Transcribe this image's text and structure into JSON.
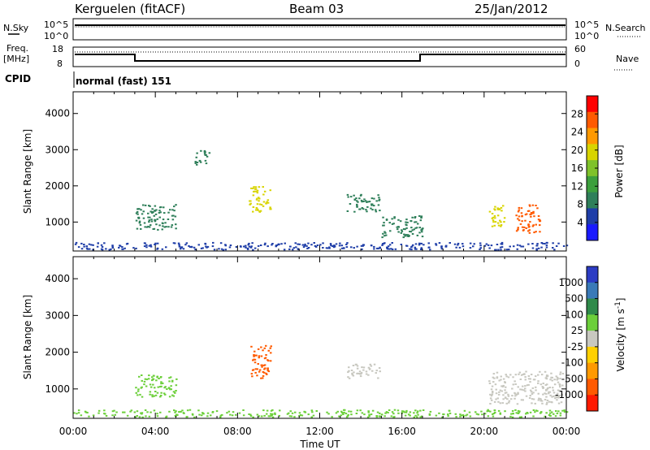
{
  "header": {
    "title": "Kerguelen (fitACF)",
    "beam": "Beam 03",
    "date": "25/Jan/2012"
  },
  "status_panels": {
    "nsky_label": "N.Sky",
    "nsearch_label": "N.Search",
    "freq_label_1": "Freq.",
    "freq_label_2": "[MHz]",
    "nave_label": "Nave",
    "cpid_label": "CPID",
    "cpid_value": "normal (fast) 151",
    "noise_ticks": [
      "10^5",
      "10^0"
    ],
    "freq_ticks_left": [
      "18",
      "8"
    ],
    "freq_ticks_right": [
      "60",
      "0"
    ]
  },
  "colors": {
    "power_scale": [
      "#1a1aff",
      "#1f3ea8",
      "#2f7f5a",
      "#3c9f3c",
      "#7fc22a",
      "#d8d400",
      "#ff9900",
      "#ff5a00",
      "#ff0000"
    ],
    "velocity_scale": [
      "#2c3cc4",
      "#3a7ab8",
      "#2f8a4a",
      "#6ccf3a",
      "#c8c8c0",
      "#ffd000",
      "#ff9a00",
      "#ff5a00",
      "#ff1a00"
    ]
  },
  "chart_data": [
    {
      "type": "heatmap",
      "panel": "power",
      "ylabel": "Slant Range [km]",
      "yticks": [
        "1000",
        "2000",
        "3000",
        "4000"
      ],
      "ylim": [
        200,
        4600
      ],
      "xticks": [
        "00:00",
        "04:00",
        "08:00",
        "12:00",
        "16:00",
        "20:00",
        "00:00"
      ],
      "colorbar_label": "Power [dB]",
      "colorbar_ticks": [
        "4",
        "8",
        "12",
        "16",
        "20",
        "24",
        "28"
      ],
      "regions": [
        {
          "t0": 0.0,
          "t1": 24.0,
          "r0": 250,
          "r1": 450,
          "v": 6
        },
        {
          "t0": 3.0,
          "t1": 5.0,
          "r0": 800,
          "r1": 1500,
          "v": 10
        },
        {
          "t0": 5.8,
          "t1": 6.6,
          "r0": 2600,
          "r1": 3000,
          "v": 8
        },
        {
          "t0": 8.5,
          "t1": 9.6,
          "r0": 1300,
          "r1": 2000,
          "v": 18
        },
        {
          "t0": 13.3,
          "t1": 14.9,
          "r0": 1300,
          "r1": 1800,
          "v": 10
        },
        {
          "t0": 15.0,
          "t1": 17.0,
          "r0": 600,
          "r1": 1200,
          "v": 9
        },
        {
          "t0": 20.2,
          "t1": 21.0,
          "r0": 900,
          "r1": 1500,
          "v": 18
        },
        {
          "t0": 21.5,
          "t1": 22.7,
          "r0": 700,
          "r1": 1500,
          "v": 26
        }
      ]
    },
    {
      "type": "heatmap",
      "panel": "velocity",
      "xlabel": "Time UT",
      "ylabel": "Slant Range [km]",
      "yticks": [
        "1000",
        "2000",
        "3000",
        "4000"
      ],
      "ylim": [
        200,
        4600
      ],
      "xticks": [
        "00:00",
        "04:00",
        "08:00",
        "12:00",
        "16:00",
        "20:00",
        "00:00"
      ],
      "colorbar_label": "Velocity [m s",
      "colorbar_label_sup": "-1",
      "colorbar_label_end": "]",
      "colorbar_ticks": [
        "1000",
        "500",
        "100",
        "25",
        "-25",
        "-100",
        "-500",
        "-1000"
      ],
      "regions": [
        {
          "t0": 0.0,
          "t1": 24.0,
          "r0": 250,
          "r1": 450,
          "v": 50
        },
        {
          "t0": 3.0,
          "t1": 5.0,
          "r0": 800,
          "r1": 1400,
          "v": 30
        },
        {
          "t0": 8.6,
          "t1": 9.6,
          "r0": 1300,
          "r1": 2200,
          "v": -600
        },
        {
          "t0": 13.3,
          "t1": 14.9,
          "r0": 1300,
          "r1": 1700,
          "v": 0
        },
        {
          "t0": 20.2,
          "t1": 23.8,
          "r0": 600,
          "r1": 1500,
          "v": 0
        }
      ]
    }
  ]
}
